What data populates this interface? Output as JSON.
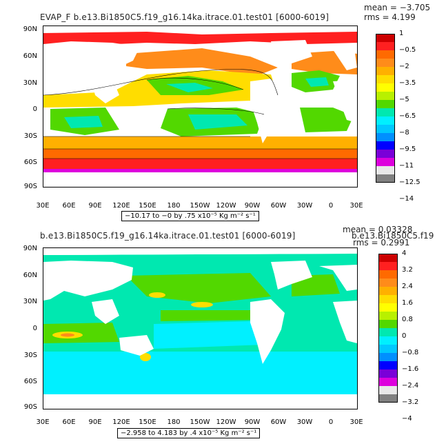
{
  "top": {
    "title": "EVAP_F b.e13.Bi1850C5.f19_g16.14ka.itrace.01.test01 [6000-6019]",
    "mean_text": "mean = −3.705",
    "rms_text": "rms = 4.199",
    "range_text": "−10.17 to −0 by .75 x10⁻⁵ Kg m⁻² s⁻¹",
    "colorbar": {
      "colors": [
        "#cc0000",
        "#ff2020",
        "#ff6a00",
        "#ff8c1a",
        "#ffb000",
        "#ffdd00",
        "#ffff00",
        "#b8f000",
        "#52d800",
        "#00e8b0",
        "#00f0ff",
        "#00c8ff",
        "#0090ff",
        "#0000ff",
        "#7a00d8",
        "#dd00dd",
        "#e8e8e8",
        "#808080"
      ],
      "labels": [
        "1",
        "−0.5",
        "−2",
        "−3.5",
        "−5",
        "−6.5",
        "−8",
        "−9.5",
        "−11",
        "−12.5",
        "−14"
      ]
    }
  },
  "bottom": {
    "title": "b.e13.Bi1850C5.f19_g16.14ka.itrace.01.test01 [6000-6019]",
    "mean_text": "mean = 0.03328",
    "rms_text": "rms = 0.2991",
    "overlap_text": "b.e13.Bi1850C5.f19",
    "range_text": "−2.958 to 4.183 by .4 x10⁻⁵ Kg m⁻² s⁻¹",
    "colorbar": {
      "colors": [
        "#cc0000",
        "#ff2020",
        "#ff6a00",
        "#ff8c1a",
        "#ffb000",
        "#ffdd00",
        "#ffff00",
        "#b8f000",
        "#52d800",
        "#00e8b0",
        "#00f0ff",
        "#00c8ff",
        "#0090ff",
        "#0000ff",
        "#7a00d8",
        "#dd00dd",
        "#e8e8e8",
        "#808080"
      ],
      "labels": [
        "4",
        "3.2",
        "2.4",
        "1.6",
        "0.8",
        "0",
        "−0.8",
        "−1.6",
        "−2.4",
        "−3.2",
        "−4"
      ]
    }
  },
  "axes": {
    "lat_labels": [
      "90N",
      "60N",
      "30N",
      "0",
      "30S",
      "60S",
      "90S"
    ],
    "lon_labels": [
      "30E",
      "60E",
      "90E",
      "120E",
      "150E",
      "180",
      "150W",
      "120W",
      "90W",
      "60W",
      "30W",
      "0",
      "30E"
    ]
  }
}
